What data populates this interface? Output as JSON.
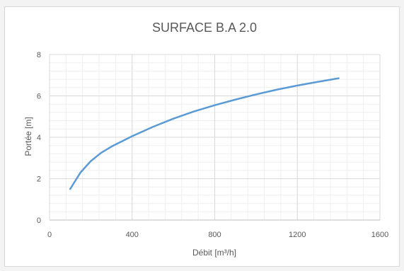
{
  "chart_data": {
    "type": "line",
    "title": "SURFACE B.A 2.0",
    "xlabel": "Débit [m³/h]",
    "ylabel": "Portée [m]",
    "xlim": [
      0,
      1600
    ],
    "ylim": [
      0,
      8
    ],
    "x_ticks": [
      "0",
      "400",
      "800",
      "1200",
      "1600"
    ],
    "y_ticks": [
      "0",
      "2",
      "4",
      "6",
      "8"
    ],
    "x_tick_values": [
      0,
      400,
      800,
      1200,
      1600
    ],
    "y_tick_values": [
      0,
      2,
      4,
      6,
      8
    ],
    "grid": true,
    "minor_grid": true,
    "legend": "none",
    "series": [
      {
        "color": "#5b9bd5",
        "x": [
          100,
          150,
          200,
          250,
          300,
          400,
          500,
          600,
          700,
          800,
          900,
          1000,
          1100,
          1200,
          1300,
          1400
        ],
        "y": [
          1.5,
          2.3,
          2.85,
          3.25,
          3.55,
          4.05,
          4.5,
          4.9,
          5.25,
          5.55,
          5.82,
          6.07,
          6.3,
          6.5,
          6.68,
          6.85
        ]
      }
    ]
  }
}
